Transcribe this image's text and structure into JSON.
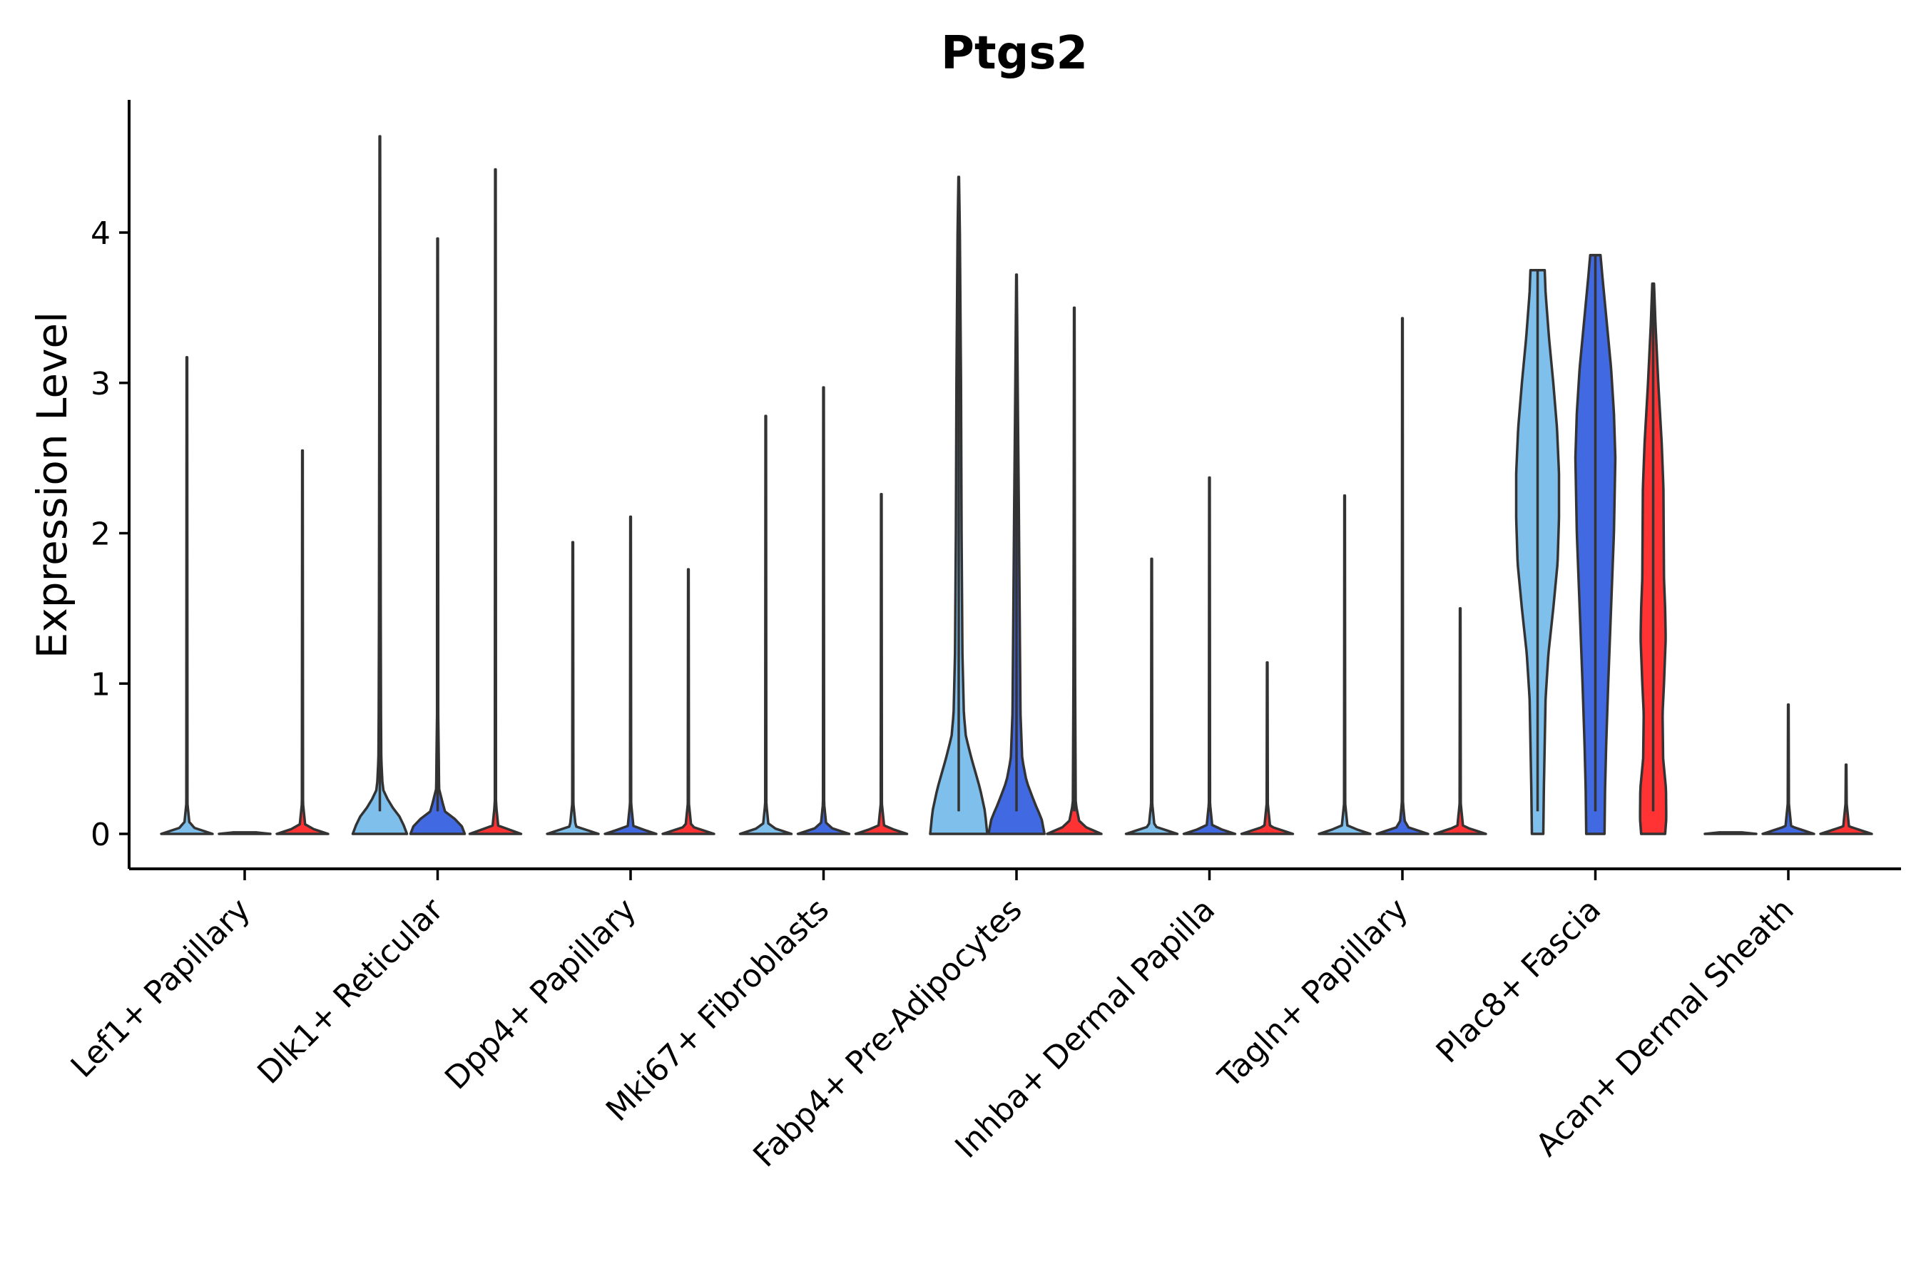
{
  "chart_data": {
    "type": "violin",
    "title": "Ptgs2",
    "xlabel": "",
    "ylabel": "Expression Level",
    "ylim": [
      -0.23,
      4.9
    ],
    "yticks": [
      0,
      1,
      2,
      3,
      4
    ],
    "grid": false,
    "legend": "none",
    "colors": {
      "light_blue": "#7fbfeb",
      "blue": "#4169e1",
      "red": "#ff3333"
    },
    "categories": [
      "Lef1+ Papillary",
      "Dlk1+ Reticular",
      "Dpp4+ Papillary",
      "Mki67+ Fibroblasts",
      "Fabp4+ Pre-Adipocytes",
      "Inhba+ Dermal Papilla",
      "Tagln+ Papillary",
      "Plac8+ Fascia",
      "Acan+ Dermal Sheath"
    ],
    "violins": [
      {
        "category": 0,
        "group": 0,
        "color": "light_blue",
        "max": 3.17,
        "profile": [
          [
            0,
            0.9
          ],
          [
            0.05,
            0.1
          ],
          [
            0.2,
            0.02
          ],
          [
            3.17,
            0.01
          ]
        ]
      },
      {
        "category": 0,
        "group": 1,
        "color": "blue",
        "max": 0.0,
        "profile": [
          [
            0,
            0.9
          ],
          [
            0.01,
            0.4
          ]
        ]
      },
      {
        "category": 0,
        "group": 2,
        "color": "red",
        "max": 2.55,
        "profile": [
          [
            0,
            0.9
          ],
          [
            0.05,
            0.1
          ],
          [
            0.2,
            0.02
          ],
          [
            2.55,
            0.01
          ]
        ]
      },
      {
        "category": 1,
        "group": 0,
        "color": "light_blue",
        "max": 4.64,
        "profile": [
          [
            0,
            0.95
          ],
          [
            0.1,
            0.75
          ],
          [
            0.2,
            0.35
          ],
          [
            0.3,
            0.1
          ],
          [
            0.5,
            0.05
          ],
          [
            0.8,
            0.04
          ],
          [
            1.5,
            0.03
          ],
          [
            3.0,
            0.02
          ],
          [
            4.64,
            0.01
          ]
        ]
      },
      {
        "category": 1,
        "group": 1,
        "color": "blue",
        "max": 3.96,
        "profile": [
          [
            0,
            0.95
          ],
          [
            0.05,
            0.85
          ],
          [
            0.1,
            0.6
          ],
          [
            0.15,
            0.25
          ],
          [
            0.3,
            0.05
          ],
          [
            0.5,
            0.04
          ],
          [
            0.8,
            0.02
          ],
          [
            1.5,
            0.02
          ],
          [
            3.96,
            0.01
          ]
        ]
      },
      {
        "category": 1,
        "group": 2,
        "color": "red",
        "max": 4.42,
        "profile": [
          [
            0,
            0.9
          ],
          [
            0.05,
            0.1
          ],
          [
            0.2,
            0.02
          ],
          [
            4.42,
            0.01
          ]
        ]
      },
      {
        "category": 2,
        "group": 0,
        "color": "light_blue",
        "max": 1.94,
        "profile": [
          [
            0,
            0.9
          ],
          [
            0.05,
            0.1
          ],
          [
            0.2,
            0.02
          ],
          [
            1.94,
            0.01
          ]
        ]
      },
      {
        "category": 2,
        "group": 1,
        "color": "blue",
        "max": 2.11,
        "profile": [
          [
            0,
            0.9
          ],
          [
            0.05,
            0.1
          ],
          [
            0.2,
            0.02
          ],
          [
            2.11,
            0.01
          ]
        ]
      },
      {
        "category": 2,
        "group": 2,
        "color": "red",
        "max": 1.76,
        "profile": [
          [
            0,
            0.9
          ],
          [
            0.05,
            0.1
          ],
          [
            0.2,
            0.02
          ],
          [
            1.76,
            0.01
          ]
        ]
      },
      {
        "category": 3,
        "group": 0,
        "color": "light_blue",
        "max": 2.78,
        "profile": [
          [
            0,
            0.9
          ],
          [
            0.05,
            0.1
          ],
          [
            0.2,
            0.02
          ],
          [
            2.78,
            0.01
          ]
        ]
      },
      {
        "category": 3,
        "group": 1,
        "color": "blue",
        "max": 2.97,
        "profile": [
          [
            0,
            0.9
          ],
          [
            0.05,
            0.1
          ],
          [
            0.2,
            0.02
          ],
          [
            2.97,
            0.01
          ]
        ]
      },
      {
        "category": 3,
        "group": 2,
        "color": "red",
        "max": 2.26,
        "profile": [
          [
            0,
            0.9
          ],
          [
            0.05,
            0.1
          ],
          [
            0.2,
            0.02
          ],
          [
            2.26,
            0.01
          ]
        ]
      },
      {
        "category": 4,
        "group": 0,
        "color": "light_blue",
        "max": 4.37,
        "profile": [
          [
            0,
            1.0
          ],
          [
            0.15,
            0.92
          ],
          [
            0.3,
            0.75
          ],
          [
            0.5,
            0.45
          ],
          [
            0.65,
            0.25
          ],
          [
            0.8,
            0.18
          ],
          [
            1.2,
            0.13
          ],
          [
            2.0,
            0.1
          ],
          [
            3.0,
            0.08
          ],
          [
            3.5,
            0.06
          ],
          [
            4.0,
            0.04
          ],
          [
            4.37,
            0.01
          ]
        ]
      },
      {
        "category": 4,
        "group": 1,
        "color": "blue",
        "max": 3.72,
        "profile": [
          [
            0,
            0.98
          ],
          [
            0.1,
            0.88
          ],
          [
            0.2,
            0.65
          ],
          [
            0.35,
            0.35
          ],
          [
            0.5,
            0.2
          ],
          [
            0.8,
            0.14
          ],
          [
            1.5,
            0.11
          ],
          [
            2.2,
            0.08
          ],
          [
            2.8,
            0.05
          ],
          [
            3.72,
            0.01
          ]
        ]
      },
      {
        "category": 4,
        "group": 2,
        "color": "red",
        "max": 3.5,
        "profile": [
          [
            0,
            0.95
          ],
          [
            0.03,
            0.6
          ],
          [
            0.06,
            0.2
          ],
          [
            0.2,
            0.05
          ],
          [
            0.6,
            0.04
          ],
          [
            1.0,
            0.03
          ],
          [
            2.0,
            0.02
          ],
          [
            3.5,
            0.01
          ]
        ]
      },
      {
        "category": 5,
        "group": 0,
        "color": "light_blue",
        "max": 1.83,
        "profile": [
          [
            0,
            0.9
          ],
          [
            0.05,
            0.1
          ],
          [
            0.2,
            0.02
          ],
          [
            1.83,
            0.01
          ]
        ]
      },
      {
        "category": 5,
        "group": 1,
        "color": "blue",
        "max": 2.37,
        "profile": [
          [
            0,
            0.9
          ],
          [
            0.05,
            0.1
          ],
          [
            0.2,
            0.02
          ],
          [
            2.37,
            0.01
          ]
        ]
      },
      {
        "category": 5,
        "group": 2,
        "color": "red",
        "max": 1.14,
        "profile": [
          [
            0,
            0.9
          ],
          [
            0.05,
            0.1
          ],
          [
            0.2,
            0.02
          ],
          [
            1.14,
            0.01
          ]
        ]
      },
      {
        "category": 6,
        "group": 0,
        "color": "light_blue",
        "max": 2.25,
        "profile": [
          [
            0,
            0.9
          ],
          [
            0.05,
            0.1
          ],
          [
            0.2,
            0.02
          ],
          [
            2.25,
            0.01
          ]
        ]
      },
      {
        "category": 6,
        "group": 1,
        "color": "blue",
        "max": 3.43,
        "profile": [
          [
            0,
            0.9
          ],
          [
            0.05,
            0.1
          ],
          [
            0.2,
            0.02
          ],
          [
            3.43,
            0.01
          ]
        ]
      },
      {
        "category": 6,
        "group": 2,
        "color": "red",
        "max": 1.5,
        "profile": [
          [
            0,
            0.9
          ],
          [
            0.05,
            0.1
          ],
          [
            0.2,
            0.02
          ],
          [
            1.5,
            0.01
          ]
        ]
      },
      {
        "category": 7,
        "group": 0,
        "color": "light_blue",
        "max": 3.75,
        "profile": [
          [
            0,
            0.2
          ],
          [
            0.3,
            0.22
          ],
          [
            0.6,
            0.25
          ],
          [
            0.9,
            0.28
          ],
          [
            1.2,
            0.38
          ],
          [
            1.5,
            0.55
          ],
          [
            1.8,
            0.7
          ],
          [
            2.1,
            0.75
          ],
          [
            2.4,
            0.75
          ],
          [
            2.7,
            0.68
          ],
          [
            3.0,
            0.55
          ],
          [
            3.3,
            0.4
          ],
          [
            3.6,
            0.28
          ],
          [
            3.75,
            0.25
          ]
        ]
      },
      {
        "category": 7,
        "group": 1,
        "color": "blue",
        "max": 3.85,
        "profile": [
          [
            0,
            0.32
          ],
          [
            0.3,
            0.34
          ],
          [
            0.6,
            0.38
          ],
          [
            1.0,
            0.45
          ],
          [
            1.5,
            0.55
          ],
          [
            2.0,
            0.65
          ],
          [
            2.5,
            0.7
          ],
          [
            2.8,
            0.65
          ],
          [
            3.1,
            0.55
          ],
          [
            3.4,
            0.4
          ],
          [
            3.7,
            0.25
          ],
          [
            3.85,
            0.18
          ]
        ]
      },
      {
        "category": 7,
        "group": 2,
        "color": "red",
        "max": 3.66,
        "profile": [
          [
            0,
            0.42
          ],
          [
            0.1,
            0.46
          ],
          [
            0.3,
            0.45
          ],
          [
            0.5,
            0.35
          ],
          [
            0.8,
            0.33
          ],
          [
            1.0,
            0.38
          ],
          [
            1.3,
            0.44
          ],
          [
            1.5,
            0.42
          ],
          [
            1.7,
            0.38
          ],
          [
            2.0,
            0.37
          ],
          [
            2.3,
            0.36
          ],
          [
            2.6,
            0.3
          ],
          [
            3.0,
            0.18
          ],
          [
            3.4,
            0.08
          ],
          [
            3.66,
            0.03
          ]
        ]
      },
      {
        "category": 8,
        "group": 0,
        "color": "light_blue",
        "max": 0.0,
        "profile": [
          [
            0,
            0.9
          ],
          [
            0.01,
            0.4
          ]
        ]
      },
      {
        "category": 8,
        "group": 1,
        "color": "blue",
        "max": 0.86,
        "profile": [
          [
            0,
            0.9
          ],
          [
            0.05,
            0.1
          ],
          [
            0.2,
            0.02
          ],
          [
            0.86,
            0.01
          ]
        ]
      },
      {
        "category": 8,
        "group": 2,
        "color": "red",
        "max": 0.46,
        "profile": [
          [
            0,
            0.9
          ],
          [
            0.05,
            0.1
          ],
          [
            0.2,
            0.02
          ],
          [
            0.46,
            0.01
          ]
        ]
      }
    ]
  }
}
